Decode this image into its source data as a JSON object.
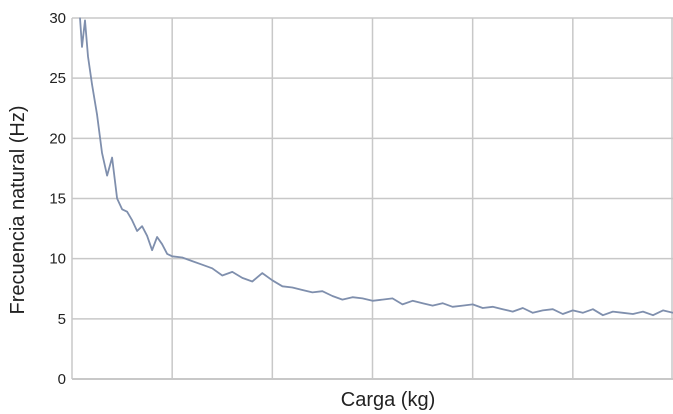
{
  "chart_data": {
    "type": "line",
    "title": "",
    "xlabel": "Carga (kg)",
    "ylabel": "Frecuencia natural (Hz)",
    "ylim": [
      0,
      30
    ],
    "xlim": [
      0,
      6
    ],
    "y_ticks": [
      "0",
      "5",
      "10",
      "15",
      "20",
      "25",
      "30"
    ],
    "x_tick_labels_shown": false,
    "grid": true,
    "legend": "none",
    "series_color": "#7f8fad",
    "grid_color": "#c8c8c8",
    "series": [
      {
        "x": [
          0.08,
          0.1,
          0.13,
          0.16,
          0.2,
          0.25,
          0.3,
          0.35,
          0.4,
          0.45,
          0.5,
          0.55,
          0.6,
          0.65,
          0.7,
          0.75,
          0.8,
          0.85,
          0.9,
          0.95,
          1.0,
          1.1,
          1.2,
          1.3,
          1.4,
          1.5,
          1.6,
          1.7,
          1.8,
          1.9,
          2.0,
          2.1,
          2.2,
          2.3,
          2.4,
          2.5,
          2.6,
          2.7,
          2.8,
          2.9,
          3.0,
          3.1,
          3.2,
          3.3,
          3.4,
          3.5,
          3.6,
          3.7,
          3.8,
          3.9,
          4.0,
          4.1,
          4.2,
          4.3,
          4.4,
          4.5,
          4.6,
          4.7,
          4.8,
          4.9,
          5.0,
          5.1,
          5.2,
          5.3,
          5.4,
          5.5,
          5.6,
          5.7,
          5.8,
          5.9,
          6.0
        ],
        "y": [
          30,
          27.6,
          29.8,
          26.8,
          24.5,
          22.0,
          18.8,
          16.9,
          18.4,
          15.0,
          14.1,
          13.9,
          13.2,
          12.3,
          12.7,
          11.9,
          10.7,
          11.8,
          11.2,
          10.4,
          10.2,
          10.1,
          9.8,
          9.5,
          9.2,
          8.6,
          8.9,
          8.4,
          8.1,
          8.8,
          8.2,
          7.7,
          7.6,
          7.4,
          7.2,
          7.3,
          6.9,
          6.6,
          6.8,
          6.7,
          6.5,
          6.6,
          6.7,
          6.2,
          6.5,
          6.3,
          6.1,
          6.3,
          6.0,
          6.1,
          6.2,
          5.9,
          6.0,
          5.8,
          5.6,
          5.9,
          5.5,
          5.7,
          5.8,
          5.4,
          5.7,
          5.5,
          5.8,
          5.3,
          5.6,
          5.5,
          5.4,
          5.6,
          5.3,
          5.7,
          5.5
        ]
      }
    ]
  }
}
